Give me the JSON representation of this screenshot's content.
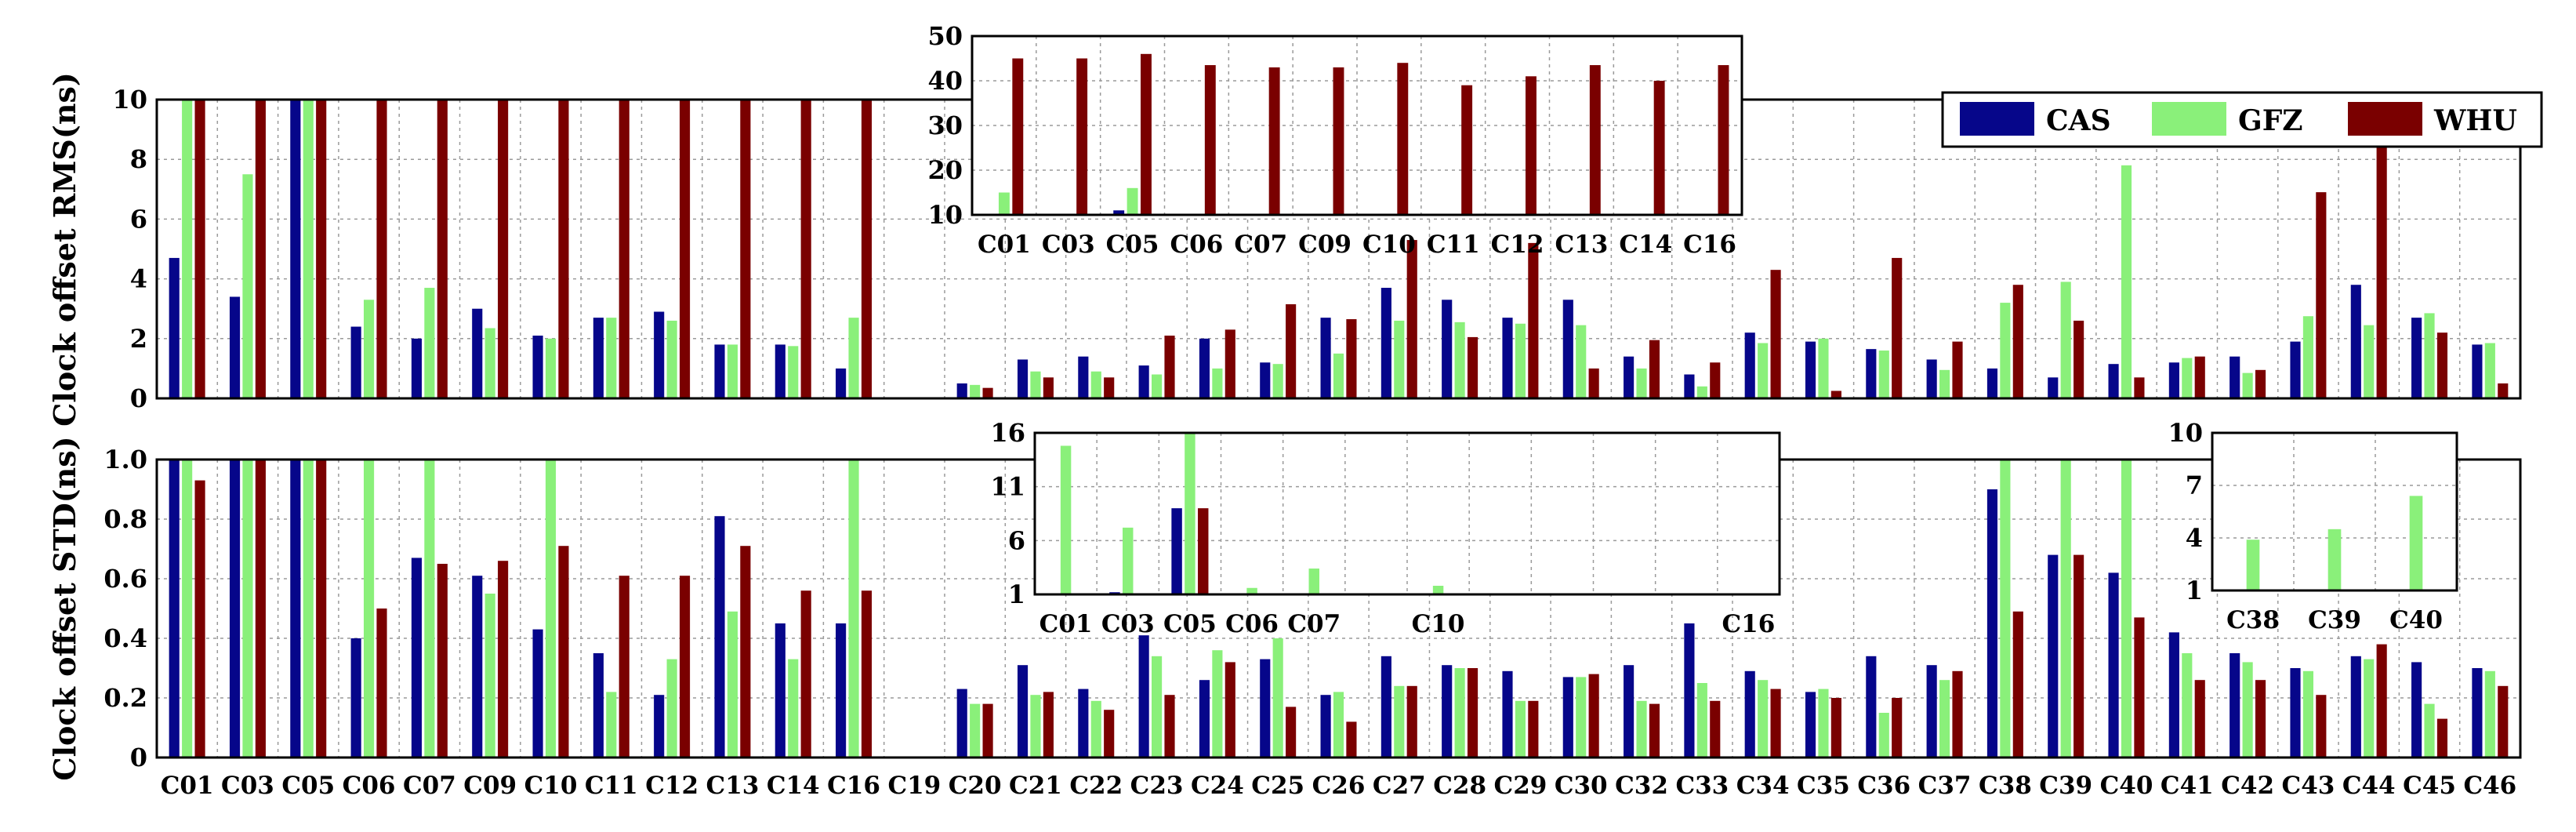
{
  "chart_data": {
    "type": "bar",
    "series_names": [
      "CAS",
      "GFZ",
      "WHU"
    ],
    "colors": {
      "CAS": "#06068a",
      "GFZ": "#8af07a",
      "WHU": "#7a0000"
    },
    "legend_position": "top-right",
    "categories": [
      "C01",
      "C03",
      "C05",
      "C06",
      "C07",
      "C09",
      "C10",
      "C11",
      "C12",
      "C13",
      "C14",
      "C16",
      "C19",
      "C20",
      "C21",
      "C22",
      "C23",
      "C24",
      "C25",
      "C26",
      "C27",
      "C28",
      "C29",
      "C30",
      "C32",
      "C33",
      "C34",
      "C35",
      "C36",
      "C37",
      "C38",
      "C39",
      "C40",
      "C41",
      "C42",
      "C43",
      "C44",
      "C45",
      "C46"
    ],
    "panels": [
      {
        "id": "rms",
        "ylabel": "Clock offset RMS(ns)",
        "ylim": [
          0,
          10
        ],
        "yticks": [
          "0",
          "2",
          "4",
          "6",
          "8",
          "10"
        ],
        "ytick_values": [
          0,
          2,
          4,
          6,
          8,
          10
        ],
        "grid": true,
        "series": [
          {
            "name": "CAS",
            "values": [
              4.7,
              3.4,
              10,
              2.4,
              2.0,
              3.0,
              2.1,
              2.7,
              2.9,
              1.8,
              1.8,
              1.0,
              0,
              0.5,
              1.3,
              1.4,
              1.1,
              2.0,
              1.2,
              2.7,
              3.7,
              3.3,
              2.7,
              3.3,
              1.4,
              0.8,
              2.2,
              1.9,
              1.65,
              1.3,
              1.0,
              0.7,
              1.15,
              1.2,
              1.4,
              1.9,
              3.8,
              2.7,
              1.8
            ]
          },
          {
            "name": "GFZ",
            "values": [
              10,
              7.5,
              10,
              3.3,
              3.7,
              2.35,
              2.0,
              2.7,
              2.6,
              1.8,
              1.75,
              2.7,
              0,
              0.45,
              0.9,
              0.9,
              0.8,
              1.0,
              1.15,
              1.5,
              2.6,
              2.55,
              2.5,
              2.45,
              1.0,
              0.4,
              1.85,
              2.0,
              1.6,
              0.95,
              3.2,
              3.9,
              7.8,
              1.35,
              0.85,
              2.75,
              2.45,
              2.85,
              1.85
            ]
          },
          {
            "name": "WHU",
            "values": [
              10,
              10,
              10,
              10,
              10,
              10,
              10,
              10,
              10,
              10,
              10,
              10,
              0,
              0.35,
              0.7,
              0.7,
              2.1,
              2.3,
              3.15,
              2.65,
              5.3,
              2.05,
              5.2,
              1.0,
              1.95,
              1.2,
              4.3,
              0.25,
              4.7,
              1.9,
              3.8,
              2.6,
              0.7,
              1.4,
              0.95,
              6.9,
              9.7,
              2.2,
              0.5
            ]
          }
        ],
        "inset": {
          "categories": [
            "C01",
            "C03",
            "C05",
            "C06",
            "C07",
            "C09",
            "C10",
            "C11",
            "C12",
            "C13",
            "C14",
            "C16"
          ],
          "ylim": [
            10,
            50
          ],
          "yticks": [
            "10",
            "20",
            "30",
            "40",
            "50"
          ],
          "ytick_values": [
            10,
            20,
            30,
            40,
            50
          ],
          "series": [
            {
              "name": "CAS",
              "values": [
                null,
                null,
                11,
                null,
                null,
                null,
                null,
                null,
                null,
                null,
                null,
                null
              ]
            },
            {
              "name": "GFZ",
              "values": [
                15,
                null,
                16,
                null,
                null,
                null,
                null,
                null,
                null,
                null,
                null,
                null
              ]
            },
            {
              "name": "WHU",
              "values": [
                45,
                45,
                46,
                43.5,
                43,
                43,
                44,
                39,
                41,
                43.5,
                40,
                43.5
              ]
            }
          ]
        }
      },
      {
        "id": "std",
        "ylabel": "Clock offset STD(ns)",
        "ylim": [
          0,
          1.0
        ],
        "yticks": [
          "0",
          "0.2",
          "0.4",
          "0.6",
          "0.8",
          "1.0"
        ],
        "ytick_values": [
          0,
          0.2,
          0.4,
          0.6,
          0.8,
          1.0
        ],
        "grid": true,
        "series": [
          {
            "name": "CAS",
            "values": [
              1.0,
              1.0,
              1.0,
              0.4,
              0.67,
              0.61,
              0.43,
              0.35,
              0.21,
              0.81,
              0.45,
              0.45,
              0,
              0.23,
              0.31,
              0.23,
              0.41,
              0.26,
              0.33,
              0.21,
              0.34,
              0.31,
              0.29,
              0.27,
              0.31,
              0.45,
              0.29,
              0.22,
              0.34,
              0.31,
              0.9,
              0.68,
              0.62,
              0.42,
              0.35,
              0.3,
              0.34,
              0.32,
              0.3
            ]
          },
          {
            "name": "GFZ",
            "values": [
              1.0,
              1.0,
              1.0,
              1.0,
              1.0,
              0.55,
              1.0,
              0.22,
              0.33,
              0.49,
              0.33,
              1.0,
              0,
              0.18,
              0.21,
              0.19,
              0.34,
              0.36,
              0.4,
              0.22,
              0.24,
              0.3,
              0.19,
              0.27,
              0.19,
              0.25,
              0.26,
              0.23,
              0.15,
              0.26,
              1.0,
              1.0,
              1.0,
              0.35,
              0.32,
              0.29,
              0.33,
              0.18,
              0.29
            ]
          },
          {
            "name": "WHU",
            "values": [
              0.93,
              1.0,
              1.0,
              0.5,
              0.65,
              0.66,
              0.71,
              0.61,
              0.61,
              0.71,
              0.56,
              0.56,
              0,
              0.18,
              0.22,
              0.16,
              0.21,
              0.32,
              0.17,
              0.12,
              0.24,
              0.3,
              0.19,
              0.28,
              0.18,
              0.19,
              0.23,
              0.2,
              0.2,
              0.29,
              0.49,
              0.68,
              0.47,
              0.26,
              0.26,
              0.21,
              0.38,
              0.13,
              0.24
            ]
          }
        ],
        "inset": {
          "tick_labels": [
            "C01",
            "C03",
            "C05",
            "C06",
            "C07",
            "C10",
            "C16"
          ],
          "slots": 12,
          "label_slots": [
            0,
            1,
            2,
            3,
            4,
            6,
            11
          ],
          "ylim": [
            1,
            16
          ],
          "yticks": [
            "1",
            "6",
            "11",
            "16"
          ],
          "ytick_values": [
            1,
            6,
            11,
            16
          ],
          "series": [
            {
              "name": "CAS",
              "values": [
                null,
                1.2,
                9,
                null,
                null,
                null,
                null,
                null,
                null,
                null,
                null,
                null
              ]
            },
            {
              "name": "GFZ",
              "values": [
                14.8,
                7.2,
                16,
                1.6,
                3.4,
                null,
                1.8,
                null,
                null,
                null,
                null,
                1.1
              ]
            },
            {
              "name": "WHU",
              "values": [
                null,
                null,
                9,
                null,
                null,
                null,
                null,
                null,
                null,
                null,
                null,
                null
              ]
            }
          ]
        },
        "inset2": {
          "categories": [
            "C38",
            "C39",
            "C40"
          ],
          "ylim": [
            1,
            10
          ],
          "yticks": [
            "1",
            "4",
            "7",
            "10"
          ],
          "ytick_values": [
            1,
            4,
            7,
            10
          ],
          "series": [
            {
              "name": "GFZ",
              "values": [
                3.9,
                4.5,
                6.4
              ]
            }
          ]
        }
      }
    ]
  }
}
